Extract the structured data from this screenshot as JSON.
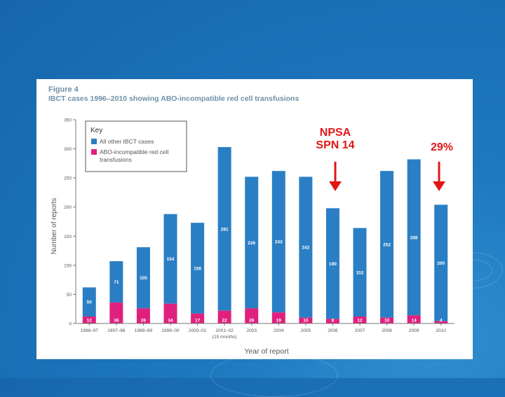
{
  "figure": {
    "number_label": "Figure 4",
    "title": "IBCT cases 1996–2010 showing ABO-incompatible red cell transfusions"
  },
  "colors": {
    "other_ibct": "#2a7fc4",
    "abo_incompatible": "#e0207f",
    "annotation": "#e01616",
    "axis_text": "#555555"
  },
  "chart_data": {
    "type": "bar",
    "stacked": true,
    "categories": [
      "1996–97",
      "1997–98",
      "1998–99",
      "1999–00",
      "2000–01",
      "2001–02",
      "2003",
      "2004",
      "2005",
      "2006",
      "2007",
      "2008",
      "2009",
      "2010"
    ],
    "category_notes": {
      "2001–02": "(15 months)"
    },
    "series": [
      {
        "name": "ABO-incompatible red cell transfusions",
        "values": [
          12,
          36,
          26,
          34,
          17,
          22,
          26,
          19,
          10,
          8,
          12,
          10,
          14,
          4
        ]
      },
      {
        "name": "All other IBCT cases",
        "values": [
          50,
          71,
          105,
          154,
          156,
          281,
          226,
          243,
          242,
          190,
          152,
          252,
          268,
          200
        ]
      }
    ],
    "ylabel": "Number of reports",
    "xlabel": "Year of report",
    "ylim": [
      0,
      350
    ],
    "yticks": [
      0,
      50,
      100,
      150,
      200,
      250,
      300,
      350
    ],
    "legend": {
      "title": "Key",
      "position": "top-left",
      "entries": [
        "All other IBCT cases",
        "ABO-incompatible red cell transfusions"
      ]
    }
  },
  "annotations": {
    "npsa_line1": "NPSA",
    "npsa_line2": "SPN 14",
    "percent": "29%"
  }
}
